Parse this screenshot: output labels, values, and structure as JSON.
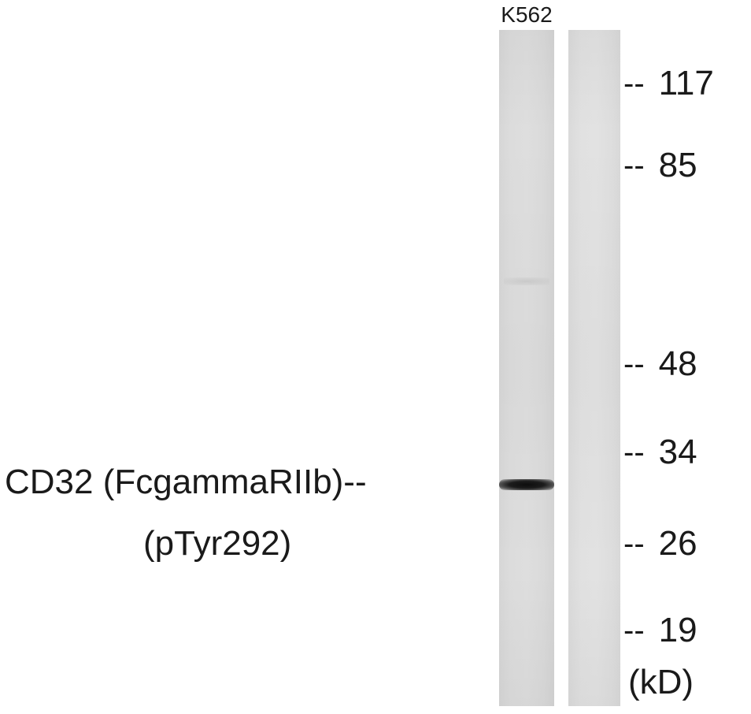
{
  "figure": {
    "type": "western-blot",
    "sample_label": "K562",
    "lanes": [
      {
        "name": "lane-1",
        "band": {
          "marker_between": [
            "34",
            "26"
          ]
        }
      },
      {
        "name": "lane-2",
        "band": null
      }
    ],
    "markers": [
      {
        "label": "117"
      },
      {
        "label": "85"
      },
      {
        "label": "48"
      },
      {
        "label": "34"
      },
      {
        "label": "26"
      },
      {
        "label": "19"
      }
    ],
    "marker_dash": "--",
    "unit": "(kD)",
    "protein_line1": "CD32 (FcgammaRIIb)--",
    "protein_line2": "(pTyr292)"
  }
}
